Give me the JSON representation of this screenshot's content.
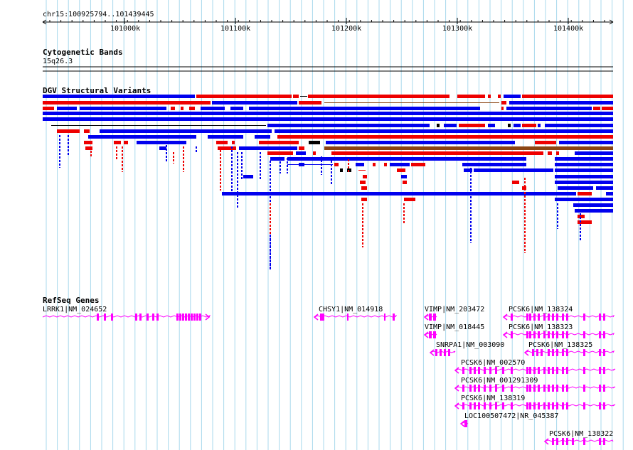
{
  "region": {
    "label": "chr15:100925794..101439445"
  },
  "ruler": {
    "ticks": [
      "101000k",
      "101100k",
      "101200k",
      "101300k",
      "101400k"
    ]
  },
  "tracks": {
    "cytoband": {
      "title": "Cytogenetic Bands",
      "band": "15q26.3"
    },
    "dgv": {
      "title": "DGV Structural Variants"
    },
    "refseq": {
      "title": "RefSeq Genes"
    }
  },
  "genes": [
    {
      "label": "LRRK1|NM_024652"
    },
    {
      "label": "CHSY1|NM_014918"
    },
    {
      "label": "VIMP|NM_203472"
    },
    {
      "label": "PCSK6|NM_138324"
    },
    {
      "label": "VIMP|NM_018445"
    },
    {
      "label": "PCSK6|NM_138323"
    },
    {
      "label": "SNRPA1|NM_003090"
    },
    {
      "label": "PCSK6|NM_138325"
    },
    {
      "label": "PCSK6|NM_002570"
    },
    {
      "label": "PCSK6|NM_001291309"
    },
    {
      "label": "PCSK6|NM_138319"
    },
    {
      "label": "LOC100507472|NR_045387"
    },
    {
      "label": "PCSK6|NM_138322"
    }
  ],
  "colors": {
    "gridline": "#a8d8ec",
    "variant_gain": "#0000ee",
    "variant_loss": "#ee0000",
    "variant_complex": "#8b4513",
    "variant_other": "#000000",
    "gene": "#ff00ff"
  }
}
